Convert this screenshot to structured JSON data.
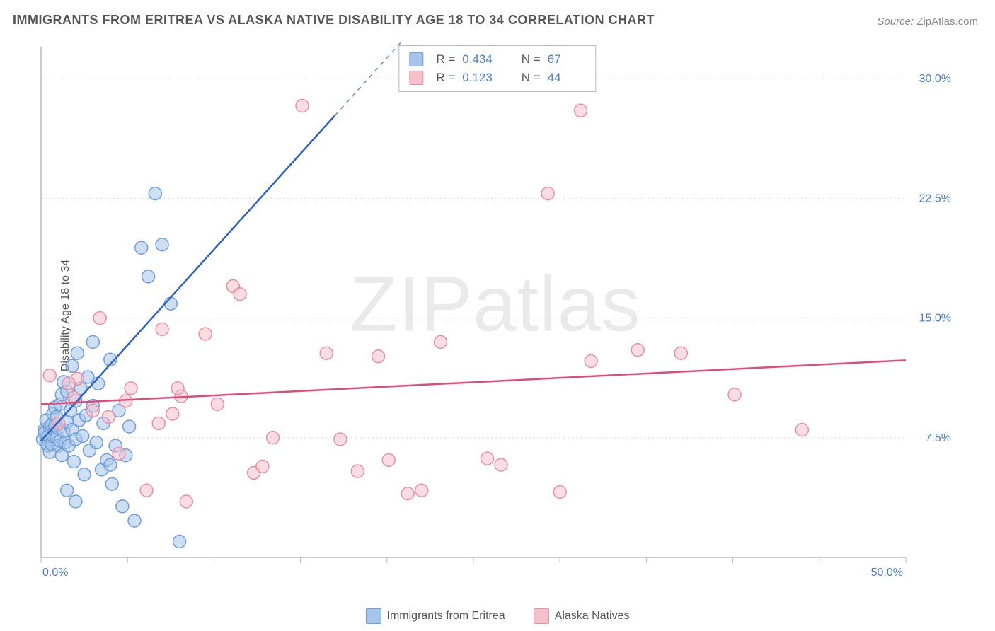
{
  "title": "IMMIGRANTS FROM ERITREA VS ALASKA NATIVE DISABILITY AGE 18 TO 34 CORRELATION CHART",
  "source_label": "Source:",
  "source_value": "ZipAtlas.com",
  "ylabel": "Disability Age 18 to 34",
  "watermark": "ZIPatlas",
  "chart": {
    "type": "scatter",
    "background_color": "#ffffff",
    "grid_color": "#d9d9d9",
    "grid_dash": "2,4",
    "axis_color": "#9a9a9a",
    "tick_color": "#bbbbbb",
    "label_color": "#4a7ec9",
    "xlim": [
      0,
      50
    ],
    "ylim": [
      0,
      32
    ],
    "x_tick_step": 5,
    "x_tick_labels": {
      "0": "0.0%",
      "50": "50.0%"
    },
    "y_ticks": [
      7.5,
      15.0,
      22.5,
      30.0
    ],
    "y_tick_labels": [
      "7.5%",
      "15.0%",
      "22.5%",
      "30.0%"
    ],
    "marker_radius": 9,
    "marker_opacity": 0.55,
    "marker_stroke_width": 1.5,
    "series": [
      {
        "name": "Immigrants from Eritrea",
        "fill": "#a7c4ea",
        "stroke": "#6f9edb",
        "trend_color": "#2f63c0",
        "trend_solid_xmax": 17,
        "trend_slope": 1.2,
        "trend_intercept": 7.3,
        "points": [
          [
            0.1,
            7.4
          ],
          [
            0.2,
            8.0
          ],
          [
            0.3,
            7.2
          ],
          [
            0.2,
            7.8
          ],
          [
            0.4,
            7.0
          ],
          [
            0.4,
            7.6
          ],
          [
            0.5,
            8.2
          ],
          [
            0.3,
            8.6
          ],
          [
            0.5,
            6.6
          ],
          [
            0.6,
            7.1
          ],
          [
            0.7,
            7.6
          ],
          [
            0.6,
            8.3
          ],
          [
            0.7,
            9.0
          ],
          [
            0.8,
            8.2
          ],
          [
            0.8,
            9.4
          ],
          [
            0.9,
            7.5
          ],
          [
            0.9,
            8.8
          ],
          [
            1.0,
            7.0
          ],
          [
            1.0,
            8.1
          ],
          [
            1.1,
            7.3
          ],
          [
            1.1,
            9.6
          ],
          [
            1.2,
            6.4
          ],
          [
            1.2,
            10.2
          ],
          [
            1.3,
            7.9
          ],
          [
            1.3,
            11.0
          ],
          [
            1.4,
            7.2
          ],
          [
            1.5,
            8.5
          ],
          [
            1.5,
            10.4
          ],
          [
            1.6,
            7.0
          ],
          [
            1.7,
            9.2
          ],
          [
            1.8,
            8.0
          ],
          [
            1.8,
            12.0
          ],
          [
            1.9,
            6.0
          ],
          [
            2.0,
            9.8
          ],
          [
            2.0,
            7.4
          ],
          [
            2.1,
            12.8
          ],
          [
            2.2,
            8.6
          ],
          [
            2.3,
            10.6
          ],
          [
            2.4,
            7.6
          ],
          [
            2.5,
            5.2
          ],
          [
            2.6,
            8.9
          ],
          [
            2.7,
            11.3
          ],
          [
            2.8,
            6.7
          ],
          [
            3.0,
            9.5
          ],
          [
            3.0,
            13.5
          ],
          [
            3.2,
            7.2
          ],
          [
            3.3,
            10.9
          ],
          [
            3.5,
            5.5
          ],
          [
            3.6,
            8.4
          ],
          [
            3.8,
            6.1
          ],
          [
            4.0,
            12.4
          ],
          [
            4.1,
            4.6
          ],
          [
            4.3,
            7.0
          ],
          [
            4.5,
            9.2
          ],
          [
            4.7,
            3.2
          ],
          [
            4.9,
            6.4
          ],
          [
            5.1,
            8.2
          ],
          [
            5.4,
            2.3
          ],
          [
            5.8,
            19.4
          ],
          [
            6.2,
            17.6
          ],
          [
            6.6,
            22.8
          ],
          [
            7.0,
            19.6
          ],
          [
            7.5,
            15.9
          ],
          [
            8.0,
            1.0
          ],
          [
            1.5,
            4.2
          ],
          [
            2.0,
            3.5
          ],
          [
            4.0,
            5.8
          ]
        ]
      },
      {
        "name": "Alaska Natives",
        "fill": "#f4c1cd",
        "stroke": "#e98fa7",
        "trend_color": "#e34a7a",
        "trend_solid_xmax": 50,
        "trend_slope": 0.055,
        "trend_intercept": 9.6,
        "points": [
          [
            0.5,
            11.4
          ],
          [
            1.0,
            8.4
          ],
          [
            1.9,
            10.0
          ],
          [
            2.1,
            11.2
          ],
          [
            3.4,
            15.0
          ],
          [
            3.9,
            8.8
          ],
          [
            4.9,
            9.8
          ],
          [
            5.2,
            10.6
          ],
          [
            6.1,
            4.2
          ],
          [
            6.8,
            8.4
          ],
          [
            7.0,
            14.3
          ],
          [
            7.6,
            9.0
          ],
          [
            8.1,
            10.1
          ],
          [
            8.4,
            3.5
          ],
          [
            9.5,
            14.0
          ],
          [
            10.2,
            9.6
          ],
          [
            11.1,
            17.0
          ],
          [
            11.5,
            16.5
          ],
          [
            12.3,
            5.3
          ],
          [
            12.8,
            5.7
          ],
          [
            13.4,
            7.5
          ],
          [
            15.1,
            28.3
          ],
          [
            16.5,
            12.8
          ],
          [
            17.3,
            7.4
          ],
          [
            18.3,
            5.4
          ],
          [
            19.5,
            12.6
          ],
          [
            20.1,
            6.1
          ],
          [
            21.2,
            4.0
          ],
          [
            22.0,
            4.2
          ],
          [
            23.1,
            13.5
          ],
          [
            25.8,
            6.2
          ],
          [
            26.6,
            5.8
          ],
          [
            29.3,
            22.8
          ],
          [
            30.0,
            4.1
          ],
          [
            31.2,
            28.0
          ],
          [
            31.8,
            12.3
          ],
          [
            34.5,
            13.0
          ],
          [
            37.0,
            12.8
          ],
          [
            40.1,
            10.2
          ],
          [
            44.0,
            8.0
          ],
          [
            7.9,
            10.6
          ],
          [
            4.5,
            6.5
          ],
          [
            3.0,
            9.2
          ],
          [
            1.6,
            10.9
          ]
        ]
      }
    ]
  },
  "top_legend": {
    "rows": [
      {
        "series_idx": 0,
        "R_label": "R =",
        "R": "0.434",
        "N_label": "N =",
        "N": "67"
      },
      {
        "series_idx": 1,
        "R_label": "R =",
        "R": "0.123",
        "N_label": "N =",
        "N": "44"
      }
    ]
  }
}
